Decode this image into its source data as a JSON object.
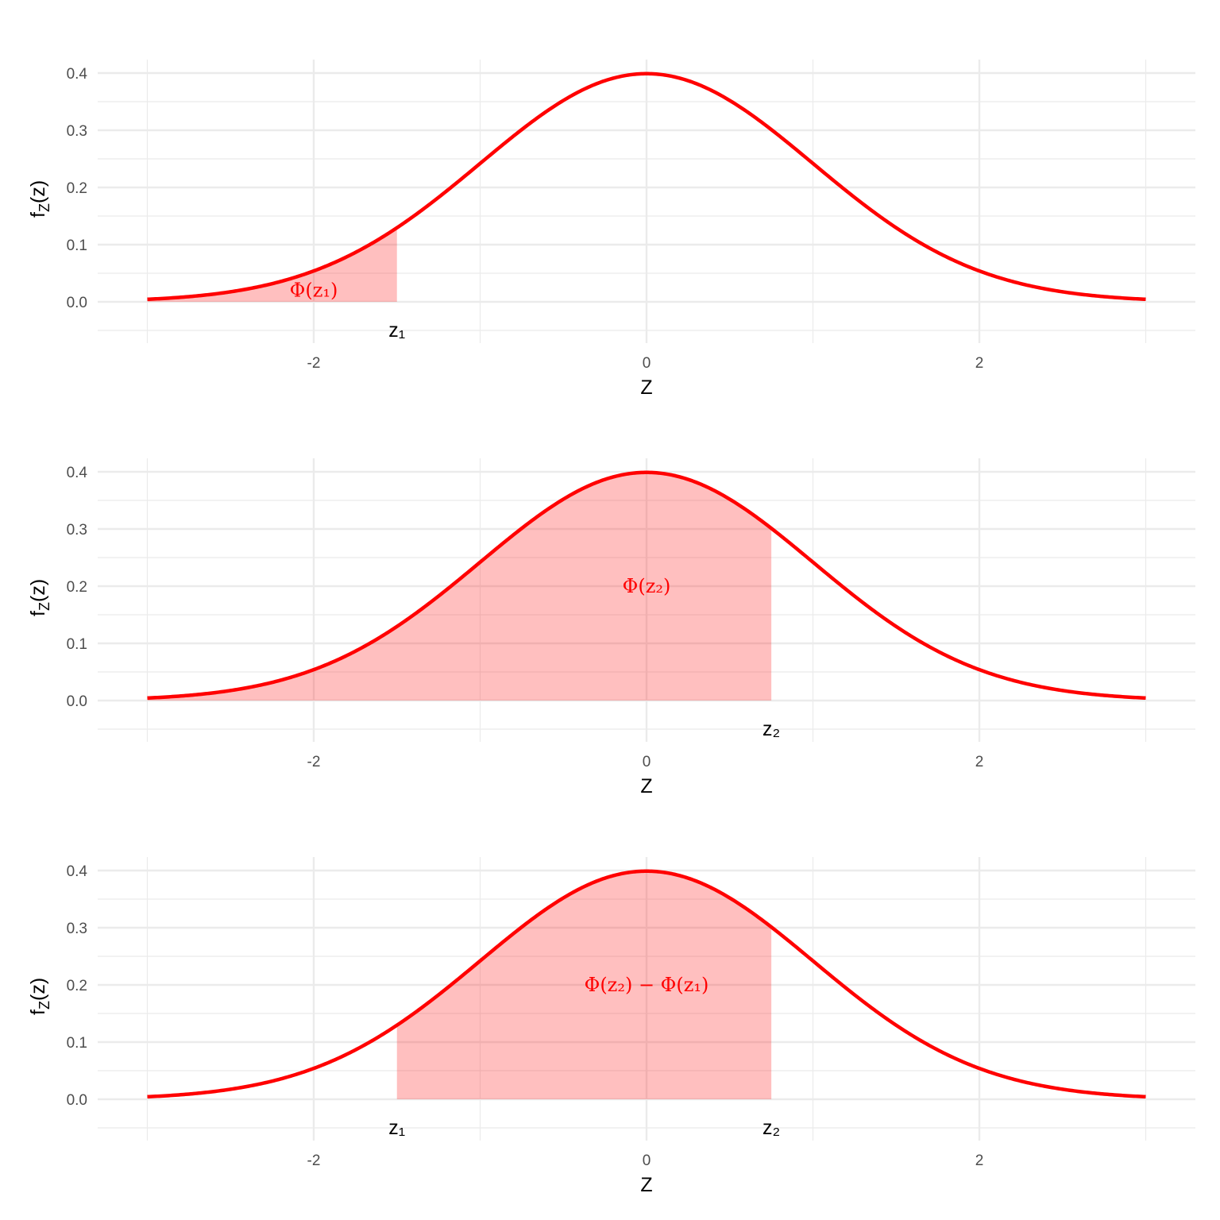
{
  "chart_data": [
    {
      "type": "area",
      "xlabel": "Z",
      "ylabel": "f_Z(z)",
      "xlim": [
        -3,
        3
      ],
      "ylim": [
        -0.05,
        0.42
      ],
      "x_ticks": [
        "-2",
        "0",
        "2"
      ],
      "y_ticks": [
        "0.0",
        "0.1",
        "0.2",
        "0.3",
        "0.4"
      ],
      "grid": true,
      "curve": "standard normal density",
      "shade_from": -3,
      "shade_to": -1.5,
      "annotation": {
        "text": "Φ(z₁)",
        "x": -2,
        "y": 0.02
      },
      "markers": [
        {
          "text": "z₁",
          "x": -1.5,
          "y": -0.05
        }
      ]
    },
    {
      "type": "area",
      "xlabel": "Z",
      "ylabel": "f_Z(z)",
      "xlim": [
        -3,
        3
      ],
      "ylim": [
        -0.05,
        0.42
      ],
      "x_ticks": [
        "-2",
        "0",
        "2"
      ],
      "y_ticks": [
        "0.0",
        "0.1",
        "0.2",
        "0.3",
        "0.4"
      ],
      "grid": true,
      "curve": "standard normal density",
      "shade_from": -3,
      "shade_to": 0.75,
      "annotation": {
        "text": "Φ(z₂)",
        "x": 0,
        "y": 0.2
      },
      "markers": [
        {
          "text": "z₂",
          "x": 0.75,
          "y": -0.05
        }
      ]
    },
    {
      "type": "area",
      "xlabel": "Z",
      "ylabel": "f_Z(z)",
      "xlim": [
        -3,
        3
      ],
      "ylim": [
        -0.05,
        0.42
      ],
      "x_ticks": [
        "-2",
        "0",
        "2"
      ],
      "y_ticks": [
        "0.0",
        "0.1",
        "0.2",
        "0.3",
        "0.4"
      ],
      "grid": true,
      "curve": "standard normal density",
      "shade_from": -1.5,
      "shade_to": 0.75,
      "annotation": {
        "text": "Φ(z₂) − Φ(z₁)",
        "x": 0,
        "y": 0.2
      },
      "markers": [
        {
          "text": "z₁",
          "x": -1.5,
          "y": -0.05
        },
        {
          "text": "z₂",
          "x": 0.75,
          "y": -0.05
        }
      ]
    }
  ],
  "colors": {
    "curve": "#ff0000",
    "fill": "#ffc0c0",
    "grid": "#ebebeb"
  }
}
